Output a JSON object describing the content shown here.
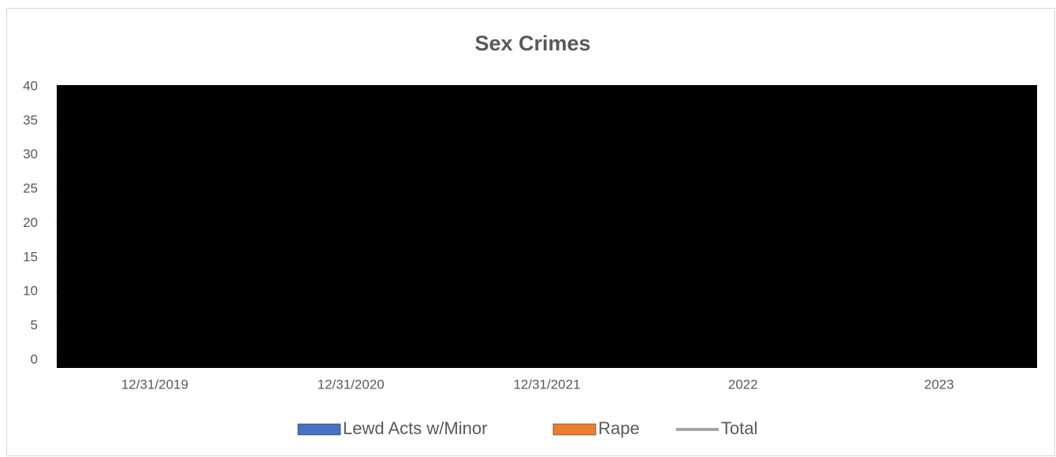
{
  "chart_data": {
    "type": "bar",
    "title": "Sex Crimes",
    "categories": [
      "12/31/2019",
      "12/31/2020",
      "12/31/2021",
      "2022",
      "2023"
    ],
    "series": [
      {
        "name": "Lewd Acts w/Minor",
        "color": "#4472c4",
        "values": [
          null,
          null,
          null,
          null,
          null
        ]
      },
      {
        "name": "Rape",
        "color": "#ed7d31",
        "values": [
          null,
          null,
          null,
          null,
          null
        ]
      },
      {
        "name": "Total",
        "color": "#a5a5a5",
        "type": "line",
        "values": [
          null,
          null,
          null,
          null,
          null
        ]
      }
    ],
    "ylim": [
      0,
      40
    ],
    "yticks": [
      0,
      5,
      10,
      15,
      20,
      25,
      30,
      35,
      40
    ],
    "legend": "bottom"
  }
}
